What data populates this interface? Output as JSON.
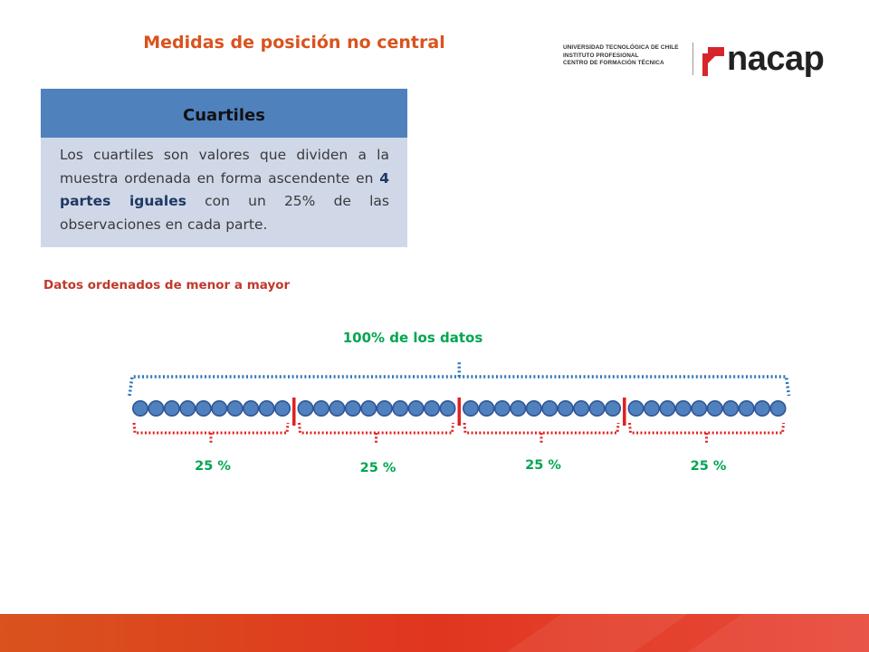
{
  "header": {
    "title": "Medidas de posición no central"
  },
  "logo": {
    "institution_lines": [
      "UNIVERSIDAD TECNOLÓGICA DE CHILE",
      "INSTITUTO PROFESIONAL",
      "CENTRO DE FORMACIÓN TÉCNICA"
    ],
    "brand": "nacap",
    "colors": {
      "red": "#d7262b",
      "dark": "#222222"
    }
  },
  "card": {
    "heading": "Cuartiles",
    "text_before": "Los cuartiles son valores que dividen a la muestra ordenada en forma ascendente en ",
    "text_bold": "4 partes iguales",
    "text_after": " con un 25% de las observaciones en cada parte.",
    "colors": {
      "header": "#4f81bd",
      "body": "#d0d8e8"
    }
  },
  "subtitle": "Datos ordenados de menor a mayor",
  "diagram": {
    "total_label": "100% de los datos",
    "segment_labels": [
      "25 %",
      "25 %",
      "25 %",
      "25 %"
    ],
    "dots_per_segment": 10,
    "colors": {
      "dot_fill": "#4f81bd",
      "dot_stroke": "#2f5597",
      "divider": "#e02020",
      "top_brace": "#2e75b6",
      "bottom_brace": "#e02020",
      "label": "#00a651"
    }
  },
  "footer": {
    "colors": [
      "#d9531e",
      "#e0361f",
      "#e84b3c"
    ]
  }
}
